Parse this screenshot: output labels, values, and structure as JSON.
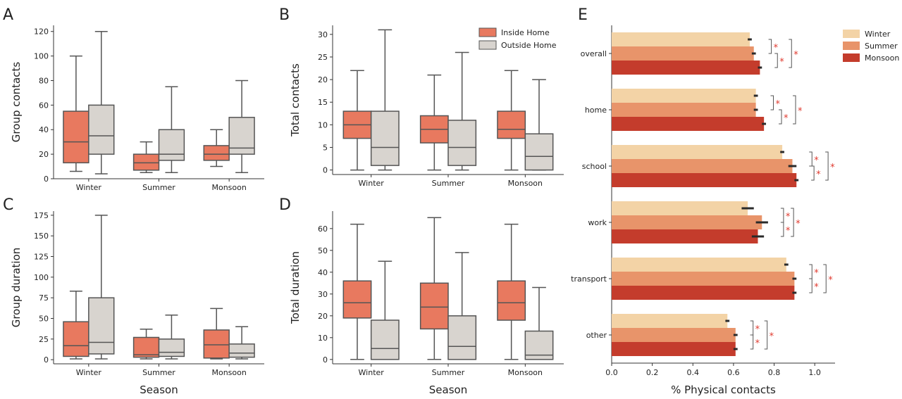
{
  "chart_data": [
    {
      "panel": "A",
      "type": "box",
      "xlabel": "",
      "ylabel": "Group contacts",
      "ylim": [
        0,
        125
      ],
      "yticks": [
        0,
        20,
        40,
        60,
        80,
        100,
        120
      ],
      "categories": [
        "Winter",
        "Summer",
        "Monsoon"
      ],
      "series": [
        {
          "name": "Inside Home",
          "boxes": [
            {
              "min": 6,
              "q1": 13,
              "median": 30,
              "q3": 55,
              "max": 100
            },
            {
              "min": 5,
              "q1": 7,
              "median": 13,
              "q3": 20,
              "max": 30
            },
            {
              "min": 10,
              "q1": 15,
              "median": 20,
              "q3": 27,
              "max": 40
            }
          ]
        },
        {
          "name": "Outside Home",
          "boxes": [
            {
              "min": 4,
              "q1": 20,
              "median": 35,
              "q3": 60,
              "max": 120
            },
            {
              "min": 5,
              "q1": 15,
              "median": 20,
              "q3": 40,
              "max": 75
            },
            {
              "min": 5,
              "q1": 20,
              "median": 25,
              "q3": 50,
              "max": 80
            }
          ]
        }
      ]
    },
    {
      "panel": "B",
      "type": "box",
      "xlabel": "",
      "ylabel": "Total contacts",
      "ylim": [
        -1,
        32
      ],
      "yticks": [
        0,
        5,
        10,
        15,
        20,
        25,
        30
      ],
      "categories": [
        "Winter",
        "Summer",
        "Monsoon"
      ],
      "legend": {
        "position": "top-right",
        "entries": [
          "Inside Home",
          "Outside Home"
        ]
      },
      "series": [
        {
          "name": "Inside Home",
          "boxes": [
            {
              "min": 0,
              "q1": 7,
              "median": 10,
              "q3": 13,
              "max": 22
            },
            {
              "min": 0,
              "q1": 6,
              "median": 9,
              "q3": 12,
              "max": 21
            },
            {
              "min": 0,
              "q1": 7,
              "median": 9,
              "q3": 13,
              "max": 22
            }
          ]
        },
        {
          "name": "Outside Home",
          "boxes": [
            {
              "min": 0,
              "q1": 1,
              "median": 5,
              "q3": 13,
              "max": 31
            },
            {
              "min": 0,
              "q1": 1,
              "median": 5,
              "q3": 11,
              "max": 26
            },
            {
              "min": 0,
              "q1": 0,
              "median": 3,
              "q3": 8,
              "max": 20
            }
          ]
        }
      ]
    },
    {
      "panel": "C",
      "type": "box",
      "xlabel": "Season",
      "ylabel": "Group duration",
      "ylim": [
        -5,
        180
      ],
      "yticks": [
        0,
        25,
        50,
        75,
        100,
        125,
        150,
        175
      ],
      "categories": [
        "Winter",
        "Summer",
        "Monsoon"
      ],
      "series": [
        {
          "name": "Inside Home",
          "boxes": [
            {
              "min": 1,
              "q1": 4,
              "median": 17,
              "q3": 46,
              "max": 83
            },
            {
              "min": 1,
              "q1": 3,
              "median": 6,
              "q3": 27,
              "max": 37
            },
            {
              "min": 1,
              "q1": 2,
              "median": 18,
              "q3": 36,
              "max": 62
            }
          ]
        },
        {
          "name": "Outside Home",
          "boxes": [
            {
              "min": 1,
              "q1": 7,
              "median": 21,
              "q3": 75,
              "max": 175
            },
            {
              "min": 1,
              "q1": 4,
              "median": 9,
              "q3": 25,
              "max": 54
            },
            {
              "min": 1,
              "q1": 3,
              "median": 8,
              "q3": 19,
              "max": 40
            }
          ]
        }
      ]
    },
    {
      "panel": "D",
      "type": "box",
      "xlabel": "Season",
      "ylabel": "Total duration",
      "ylim": [
        -2,
        68
      ],
      "yticks": [
        0,
        10,
        20,
        30,
        40,
        50,
        60
      ],
      "categories": [
        "Winter",
        "Summer",
        "Monsoon"
      ],
      "series": [
        {
          "name": "Inside Home",
          "boxes": [
            {
              "min": 0,
              "q1": 19,
              "median": 26,
              "q3": 36,
              "max": 62
            },
            {
              "min": 0,
              "q1": 14,
              "median": 24,
              "q3": 35,
              "max": 65
            },
            {
              "min": 0,
              "q1": 18,
              "median": 26,
              "q3": 36,
              "max": 62
            }
          ]
        },
        {
          "name": "Outside Home",
          "boxes": [
            {
              "min": 0,
              "q1": 0,
              "median": 5,
              "q3": 18,
              "max": 45
            },
            {
              "min": 0,
              "q1": 0,
              "median": 6,
              "q3": 20,
              "max": 49
            },
            {
              "min": 0,
              "q1": 0,
              "median": 2,
              "q3": 13,
              "max": 33
            }
          ]
        }
      ]
    },
    {
      "panel": "E",
      "type": "bar",
      "orientation": "horizontal",
      "xlabel": "% Physical contacts",
      "ylabel": "",
      "xlim": [
        0,
        1.1
      ],
      "xticks": [
        0.0,
        0.2,
        0.4,
        0.6,
        0.8,
        1.0
      ],
      "categories": [
        "overall",
        "home",
        "school",
        "work",
        "transport",
        "other"
      ],
      "legend": {
        "position": "top-right",
        "entries": [
          "Winter",
          "Summer",
          "Monsoon"
        ]
      },
      "significance_marker": "*",
      "series": [
        {
          "name": "Winter",
          "values": [
            0.68,
            0.71,
            0.84,
            0.67,
            0.86,
            0.57
          ],
          "err": [
            0.01,
            0.01,
            0.01,
            0.03,
            0.01,
            0.01
          ]
        },
        {
          "name": "Summer",
          "values": [
            0.7,
            0.71,
            0.89,
            0.74,
            0.9,
            0.61
          ],
          "err": [
            0.01,
            0.01,
            0.02,
            0.03,
            0.01,
            0.01
          ]
        },
        {
          "name": "Monsoon",
          "values": [
            0.73,
            0.75,
            0.91,
            0.72,
            0.9,
            0.61
          ],
          "err": [
            0.01,
            0.01,
            0.01,
            0.03,
            0.01,
            0.01
          ]
        }
      ]
    }
  ],
  "colors": {
    "inside_home": "#e8795f",
    "outside_home": "#d8d4cf",
    "box_edge": "#555555",
    "winter": "#f3d3a6",
    "summer": "#e8946a",
    "monsoon": "#c43c2c",
    "error_bar": "#2a2a2a",
    "significance": "#e03a2f"
  }
}
